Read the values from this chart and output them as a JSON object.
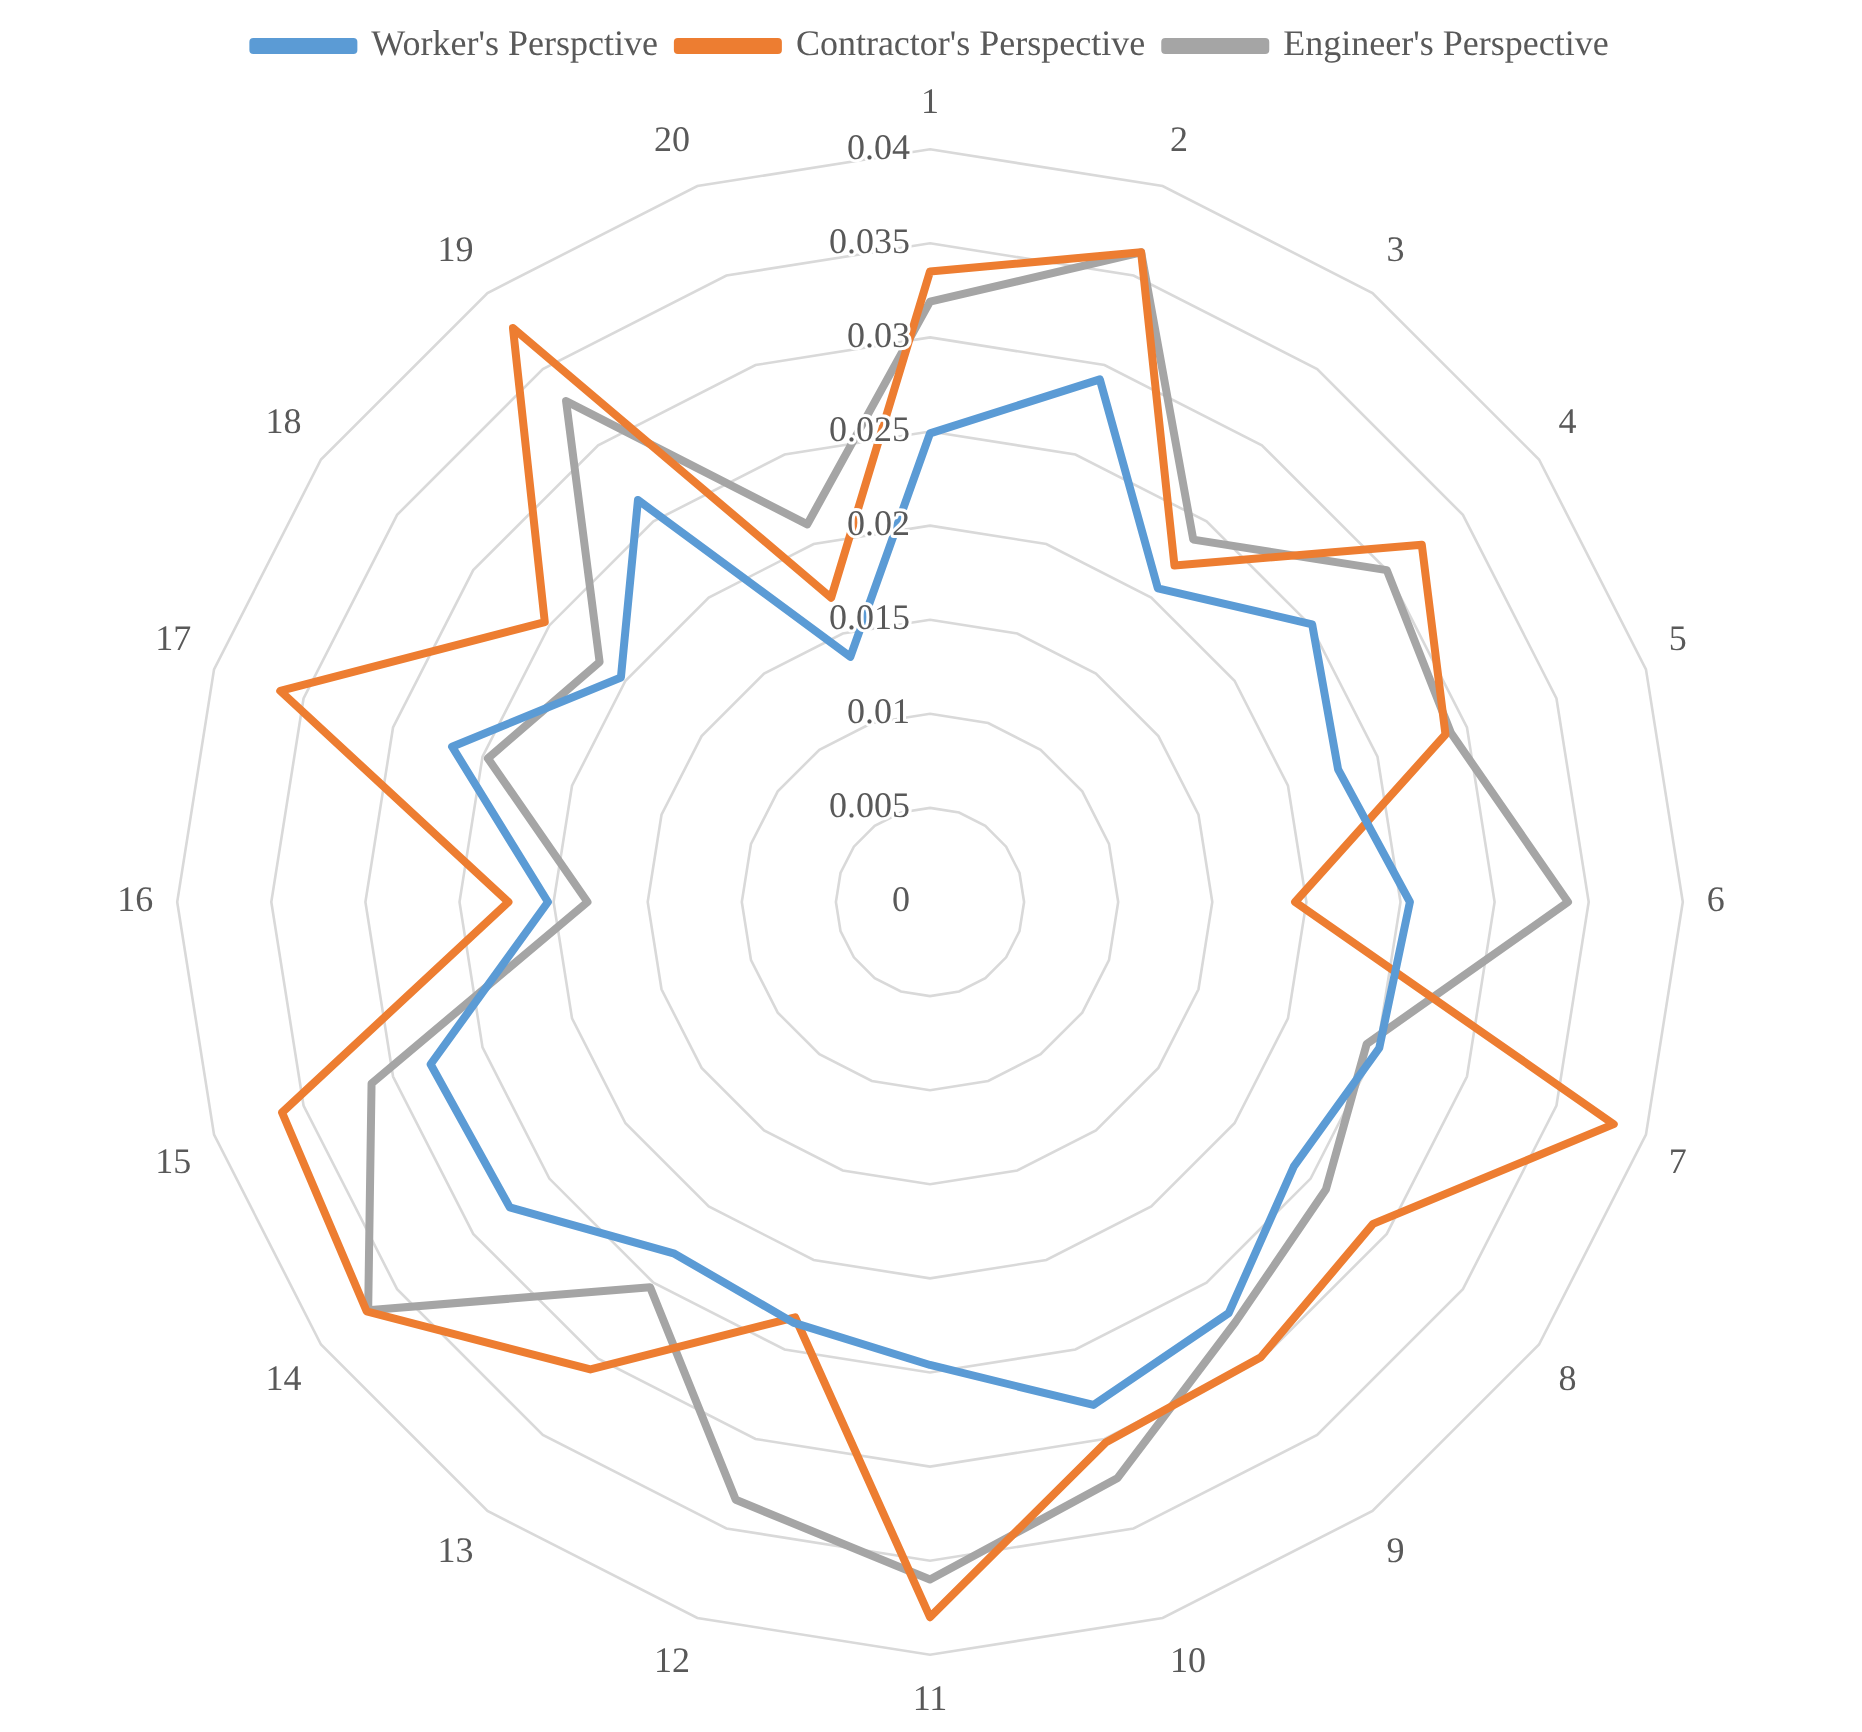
{
  "chart_data": {
    "type": "radar",
    "categories": [
      "1",
      "2",
      "3",
      "4",
      "5",
      "6",
      "7",
      "8",
      "9",
      "10",
      "11",
      "12",
      "13",
      "14",
      "15",
      "16",
      "17",
      "18",
      "19",
      "20"
    ],
    "series": [
      {
        "name": "Worker's Perspctive",
        "color": "#5b9bd5",
        "values": [
          0.0249,
          0.0292,
          0.0206,
          0.0251,
          0.0228,
          0.0255,
          0.0251,
          0.0239,
          0.027,
          0.0281,
          0.0246,
          0.0235,
          0.0231,
          0.0276,
          0.0279,
          0.0203,
          0.0267,
          0.0203,
          0.0264,
          0.0137
        ]
      },
      {
        "name": "Contractor's Perspective",
        "color": "#ed7d31",
        "values": [
          0.0335,
          0.0363,
          0.0221,
          0.0323,
          0.0288,
          0.0194,
          0.0382,
          0.0291,
          0.0299,
          0.0302,
          0.038,
          0.0232,
          0.0307,
          0.037,
          0.0362,
          0.0224,
          0.0363,
          0.0253,
          0.0377,
          0.017
        ]
      },
      {
        "name": "Engineer's Perspective",
        "color": "#a5a5a5",
        "values": [
          0.0319,
          0.0363,
          0.0238,
          0.03,
          0.0291,
          0.0339,
          0.0244,
          0.026,
          0.0276,
          0.0322,
          0.036,
          0.0334,
          0.0253,
          0.0369,
          0.0312,
          0.0182,
          0.0247,
          0.0217,
          0.0329,
          0.0211
        ]
      }
    ],
    "ylim": [
      0,
      0.04
    ],
    "yticks": [
      0,
      0.005,
      0.01,
      0.015,
      0.02,
      0.025,
      0.03,
      0.035,
      0.04
    ],
    "legend": "top",
    "grid": true,
    "marker": "none",
    "line_style": "solid"
  }
}
